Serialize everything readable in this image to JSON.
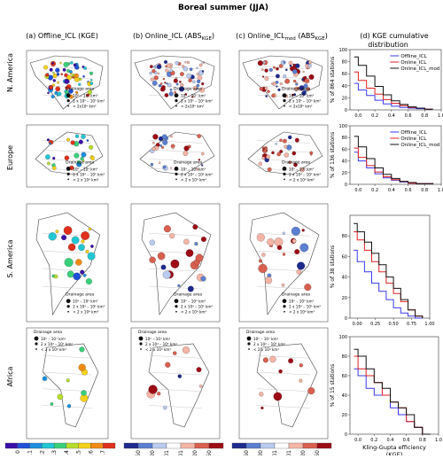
{
  "title": "Boreal summer (JJA)",
  "columns": [
    {
      "pre": "(a) Offline_ICL (KGE)",
      "sub": "",
      "post": ""
    },
    {
      "pre": "(b) Online_ICL (ABS",
      "sub": "KGE",
      "post": ")"
    },
    {
      "pre": "(c) Online_ICL",
      "sub": "mod",
      "post": " (ABS",
      "sub2": "KGE",
      "post2": ")"
    },
    {
      "pre": "(d) KGE cumulative",
      "line2": "distribution"
    }
  ],
  "rows": [
    "N. America",
    "Europe",
    "S. America",
    "Africa"
  ],
  "legend_title": "Drainage area",
  "legend_items_na": [
    "10⁶ – 10⁷ km²",
    "2 x 10⁵ – 10⁶ km²",
    "< 2x10⁵ km²"
  ],
  "legend_items_eu": [
    "10⁵ – 10⁶ km²",
    "2 x 10⁴ – 10⁵ km²",
    "< 2 x 10⁴ km²"
  ],
  "legend_items_sa": [
    "10⁵ – 10⁶ km²",
    "2 x 10⁴ – 10⁵ km²",
    "< 2 x 10⁴ km²"
  ],
  "legend_items_af": [
    "10⁵ – 10⁷ km²",
    "2 x 10⁴ – 10⁵ km²",
    "< 2 x 10⁴ km²"
  ],
  "colorbar_kge": {
    "ticks": [
      "0",
      "0.1",
      "0.2",
      "0.3",
      "0.4",
      "0.5",
      "0.6",
      "0.7"
    ],
    "colors": [
      "#3b0fa8",
      "#1e4fd8",
      "#1b8fe0",
      "#22c7d4",
      "#3ad07a",
      "#b8de2c",
      "#f5d21a",
      "#f08a12",
      "#e0301b"
    ]
  },
  "colorbar_abs": {
    "ticks": [
      "−0.50",
      "−0.20",
      "−0.01",
      "0.01",
      "0.20",
      "0.50"
    ],
    "colors": [
      "#1e2a8c",
      "#5b7fd1",
      "#b9cbee",
      "#ffffff",
      "#f4b5a6",
      "#d9604f",
      "#9c0b14"
    ]
  },
  "chart_data": [
    {
      "type": "line",
      "row": "N. America",
      "ylabel": "% of 864 stations",
      "xlim": [
        -0.1,
        1.0
      ],
      "ylim": [
        0,
        100
      ],
      "xticks": [
        "0.0",
        "0.2",
        "0.4",
        "0.6",
        "0.8",
        "1.0"
      ],
      "yticks": [
        "0",
        "20",
        "40",
        "60",
        "80",
        "100"
      ],
      "legend": [
        "Offline_ICL",
        "Online_ICL",
        "Online_ICL_mod"
      ],
      "x": [
        -0.05,
        0.0,
        0.1,
        0.2,
        0.3,
        0.4,
        0.5,
        0.6,
        0.7,
        0.8,
        0.9
      ],
      "series": [
        {
          "name": "Offline_ICL",
          "color": "#3a3af0",
          "values": [
            44,
            33,
            24,
            16,
            10,
            6,
            4,
            3,
            2,
            1,
            1
          ]
        },
        {
          "name": "Online_ICL",
          "color": "#e02020",
          "values": [
            63,
            49,
            36,
            26,
            17,
            11,
            7,
            4,
            3,
            1,
            1
          ]
        },
        {
          "name": "Online_ICL_mod",
          "color": "#111111",
          "values": [
            88,
            74,
            56,
            39,
            25,
            15,
            9,
            5,
            3,
            1,
            1
          ]
        }
      ]
    },
    {
      "type": "line",
      "row": "Europe",
      "ylabel": "% of 136 stations",
      "xlim": [
        -0.1,
        1.0
      ],
      "ylim": [
        0,
        100
      ],
      "xticks": [
        "0.0",
        "0.2",
        "0.4",
        "0.6",
        "0.8",
        "1.0"
      ],
      "yticks": [
        "0",
        "20",
        "40",
        "60",
        "80",
        "100"
      ],
      "legend": [
        "Offline_ICL",
        "Online_ICL",
        "Online_ICL_mod"
      ],
      "x": [
        -0.05,
        0.0,
        0.1,
        0.2,
        0.3,
        0.4,
        0.5,
        0.6,
        0.7,
        0.8,
        0.9
      ],
      "series": [
        {
          "name": "Offline_ICL",
          "color": "#3a3af0",
          "values": [
            55,
            40,
            28,
            18,
            11,
            7,
            4,
            2,
            1,
            1,
            0
          ]
        },
        {
          "name": "Online_ICL",
          "color": "#e02020",
          "values": [
            62,
            46,
            32,
            21,
            13,
            8,
            5,
            2,
            1,
            1,
            0
          ]
        },
        {
          "name": "Online_ICL_mod",
          "color": "#111111",
          "values": [
            82,
            64,
            44,
            28,
            17,
            10,
            5,
            3,
            1,
            1,
            0
          ]
        }
      ]
    },
    {
      "type": "line",
      "row": "S. America",
      "ylabel": "% of 38 stations",
      "xlim": [
        -0.1,
        1.0
      ],
      "ylim": [
        0,
        100
      ],
      "xticks": [
        "0.00",
        "0.25",
        "0.50",
        "0.75",
        "1.00"
      ],
      "yticks": [
        "0",
        "20",
        "40",
        "60",
        "80"
      ],
      "x": [
        -0.05,
        0.0,
        0.1,
        0.2,
        0.3,
        0.4,
        0.5,
        0.6,
        0.7,
        0.8,
        0.9
      ],
      "series": [
        {
          "name": "Offline_ICL",
          "color": "#3a3af0",
          "values": [
            66,
            55,
            45,
            34,
            26,
            18,
            10,
            5,
            2,
            0,
            0
          ]
        },
        {
          "name": "Online_ICL",
          "color": "#e02020",
          "values": [
            84,
            76,
            66,
            55,
            45,
            34,
            24,
            16,
            8,
            2,
            0
          ]
        },
        {
          "name": "Online_ICL_mod",
          "color": "#111111",
          "values": [
            92,
            84,
            74,
            63,
            52,
            40,
            29,
            18,
            8,
            2,
            0
          ]
        }
      ]
    },
    {
      "type": "line",
      "row": "Africa",
      "ylabel": "% of 15 stations",
      "xlabel": "Kling-Gupta efficiency (KGE)",
      "xlim": [
        -0.1,
        1.0
      ],
      "ylim": [
        0,
        100
      ],
      "xticks": [
        "0.0",
        "0.2",
        "0.4",
        "0.6",
        "0.8",
        "1.0"
      ],
      "yticks": [
        "0",
        "20",
        "40",
        "60",
        "80",
        "100"
      ],
      "x": [
        -0.05,
        0.0,
        0.1,
        0.2,
        0.3,
        0.4,
        0.5,
        0.6,
        0.7,
        0.8,
        0.9
      ],
      "series": [
        {
          "name": "Offline_ICL",
          "color": "#3a3af0",
          "values": [
            67,
            60,
            47,
            40,
            40,
            27,
            20,
            13,
            7,
            0,
            0
          ]
        },
        {
          "name": "Online_ICL",
          "color": "#e02020",
          "values": [
            80,
            67,
            60,
            53,
            40,
            33,
            27,
            13,
            7,
            0,
            0
          ]
        },
        {
          "name": "Online_ICL_mod",
          "color": "#111111",
          "values": [
            87,
            80,
            67,
            53,
            47,
            33,
            27,
            20,
            7,
            0,
            0
          ]
        }
      ]
    }
  ]
}
